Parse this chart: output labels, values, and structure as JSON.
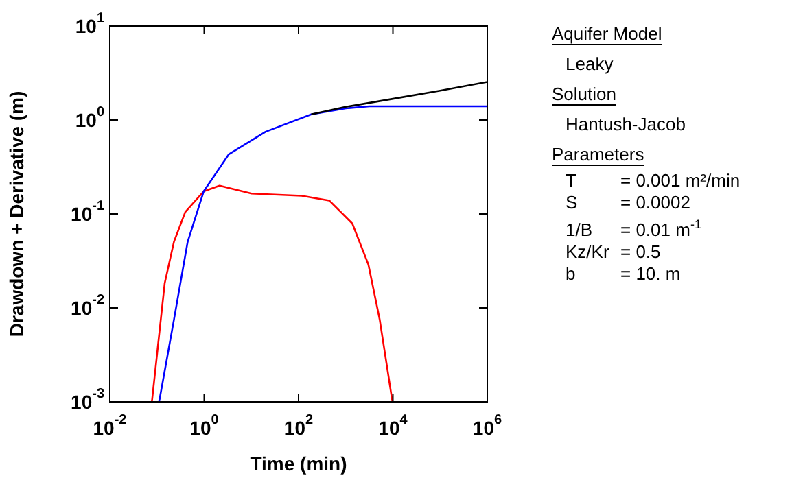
{
  "chart_data": {
    "type": "line",
    "xlabel": "Time (min)",
    "ylabel": "Drawdown + Derivative (m)",
    "log": "xy",
    "xlim": [
      0.01,
      1000000
    ],
    "ylim": [
      0.001,
      10
    ],
    "xticks": [
      {
        "value": 0.01,
        "label": "10$^{-2}$"
      },
      {
        "value": 1,
        "label": "10$^{0}$"
      },
      {
        "value": 100,
        "label": "10$^{2}$"
      },
      {
        "value": 10000,
        "label": "10$^{4}$"
      },
      {
        "value": 1000000,
        "label": "10$^{6}$"
      }
    ],
    "yticks": [
      {
        "value": 0.001,
        "label": "10$^{-3}$"
      },
      {
        "value": 0.01,
        "label": "10$^{-2}$"
      },
      {
        "value": 0.1,
        "label": "10$^{-1}$"
      },
      {
        "value": 1,
        "label": "10$^{0}$"
      },
      {
        "value": 10,
        "label": "10$^{1}$"
      }
    ],
    "grid": false,
    "legend": false,
    "marker": "none",
    "line_style": "solid",
    "series": [
      {
        "color": "#000000",
        "x": [
          186,
          1000,
          10000,
          100000,
          1000000
        ],
        "values": [
          1.15,
          1.38,
          1.68,
          2.05,
          2.54
        ]
      },
      {
        "color": "#0000ff",
        "x": [
          0.111,
          0.229,
          0.447,
          0.977,
          3.31,
          20,
          186,
          1000,
          3160,
          1000000
        ],
        "values": [
          0.001,
          0.0075,
          0.0506,
          0.174,
          0.43,
          0.75,
          1.15,
          1.33,
          1.4,
          1.4
        ]
      },
      {
        "color": "#ff0000",
        "x": [
          0.078,
          0.146,
          0.229,
          0.398,
          0.977,
          2.12,
          10.1,
          117,
          447,
          1380,
          3020,
          5250,
          9770
        ],
        "values": [
          0.001,
          0.0184,
          0.0506,
          0.105,
          0.174,
          0.2,
          0.165,
          0.156,
          0.139,
          0.079,
          0.029,
          0.0075,
          0.001
        ]
      }
    ],
    "annotations": [
      "Aquifer Model",
      "Leaky",
      "Solution",
      "Hantush-Jacob",
      "Parameters",
      "T = 0.001 m²/min",
      "S = 0.0002",
      "1/B = 0.01 m$^{-1}$",
      "Kz/Kr = 0.5",
      "b = 10. m"
    ]
  }
}
